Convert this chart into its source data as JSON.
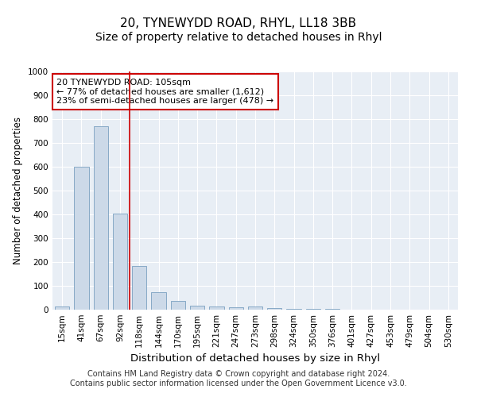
{
  "title": "20, TYNEWYDD ROAD, RHYL, LL18 3BB",
  "subtitle": "Size of property relative to detached houses in Rhyl",
  "xlabel": "Distribution of detached houses by size in Rhyl",
  "ylabel": "Number of detached properties",
  "categories": [
    "15sqm",
    "41sqm",
    "67sqm",
    "92sqm",
    "118sqm",
    "144sqm",
    "170sqm",
    "195sqm",
    "221sqm",
    "247sqm",
    "273sqm",
    "298sqm",
    "324sqm",
    "350sqm",
    "376sqm",
    "401sqm",
    "427sqm",
    "453sqm",
    "479sqm",
    "504sqm",
    "530sqm"
  ],
  "values": [
    15,
    600,
    770,
    405,
    185,
    75,
    38,
    18,
    13,
    10,
    13,
    7,
    4,
    3,
    2,
    1,
    1,
    1,
    1,
    1,
    1
  ],
  "bar_color": "#ccd9e8",
  "bar_edge_color": "#7aa0c0",
  "red_line_index": 3.5,
  "annotation_line1": "20 TYNEWYDD ROAD: 105sqm",
  "annotation_line2": "← 77% of detached houses are smaller (1,612)",
  "annotation_line3": "23% of semi-detached houses are larger (478) →",
  "annotation_box_color": "white",
  "annotation_box_edge_color": "#cc0000",
  "ylim": [
    0,
    1000
  ],
  "yticks": [
    0,
    100,
    200,
    300,
    400,
    500,
    600,
    700,
    800,
    900,
    1000
  ],
  "background_color": "#e8eef5",
  "footer_line1": "Contains HM Land Registry data © Crown copyright and database right 2024.",
  "footer_line2": "Contains public sector information licensed under the Open Government Licence v3.0.",
  "title_fontsize": 11,
  "subtitle_fontsize": 10,
  "xlabel_fontsize": 9.5,
  "ylabel_fontsize": 8.5,
  "tick_fontsize": 7.5,
  "annotation_fontsize": 8,
  "footer_fontsize": 7
}
